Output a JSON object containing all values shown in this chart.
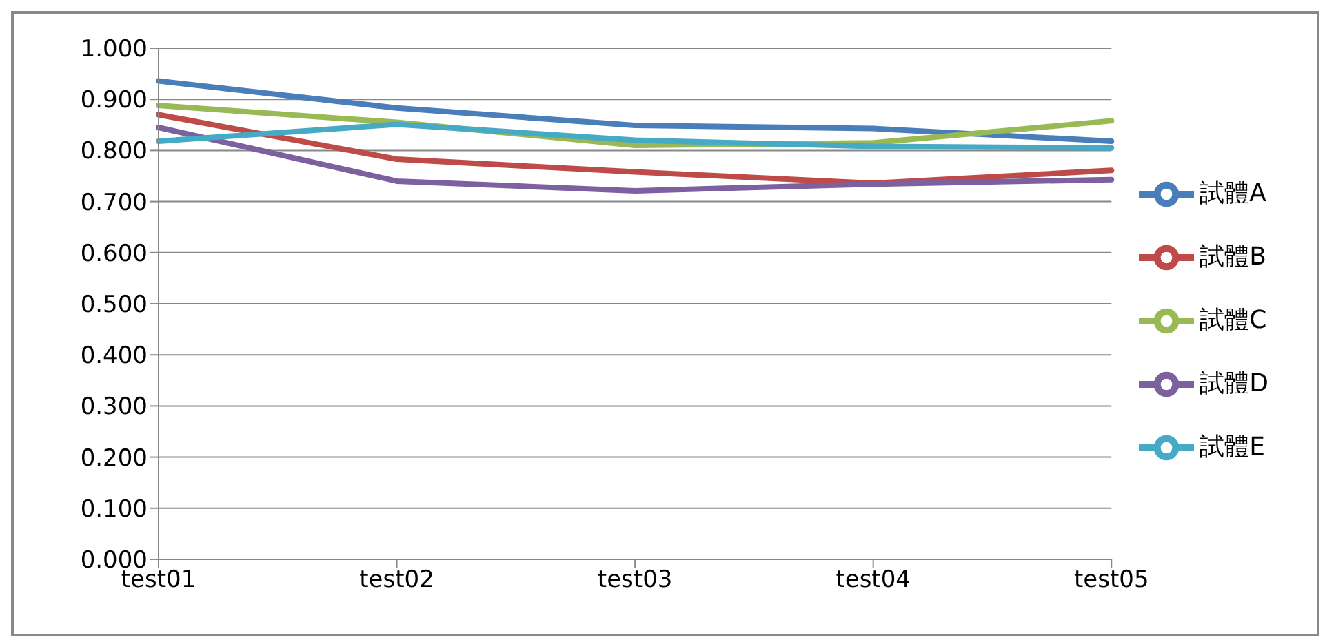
{
  "chart_data": {
    "type": "line",
    "categories": [
      "test01",
      "test02",
      "test03",
      "test04",
      "test05"
    ],
    "series": [
      {
        "name": "試體A",
        "color": "#4a7ebb",
        "values": [
          0.936,
          0.883,
          0.849,
          0.843,
          0.818
        ]
      },
      {
        "name": "試體B",
        "color": "#be4b48",
        "values": [
          0.87,
          0.783,
          0.758,
          0.736,
          0.761
        ]
      },
      {
        "name": "試體C",
        "color": "#98b954",
        "values": [
          0.888,
          0.855,
          0.81,
          0.815,
          0.858
        ]
      },
      {
        "name": "試體D",
        "color": "#7d60a0",
        "values": [
          0.845,
          0.74,
          0.721,
          0.734,
          0.743
        ]
      },
      {
        "name": "試體E",
        "color": "#46aac5",
        "values": [
          0.818,
          0.851,
          0.82,
          0.808,
          0.805
        ]
      }
    ],
    "ylim": [
      0,
      1
    ],
    "yticks": [
      {
        "value": 0,
        "label": "0.000"
      },
      {
        "value": 0.1,
        "label": "0.100"
      },
      {
        "value": 0.2,
        "label": "0.200"
      },
      {
        "value": 0.3,
        "label": "0.300"
      },
      {
        "value": 0.4,
        "label": "0.400"
      },
      {
        "value": 0.5,
        "label": "0.500"
      },
      {
        "value": 0.6,
        "label": "0.600"
      },
      {
        "value": 0.7,
        "label": "0.700"
      },
      {
        "value": 0.8,
        "label": "0.800"
      },
      {
        "value": 0.9,
        "label": "0.900"
      },
      {
        "value": 1,
        "label": "1.000"
      }
    ],
    "grid": "y",
    "legend": "right",
    "marker": "none"
  }
}
